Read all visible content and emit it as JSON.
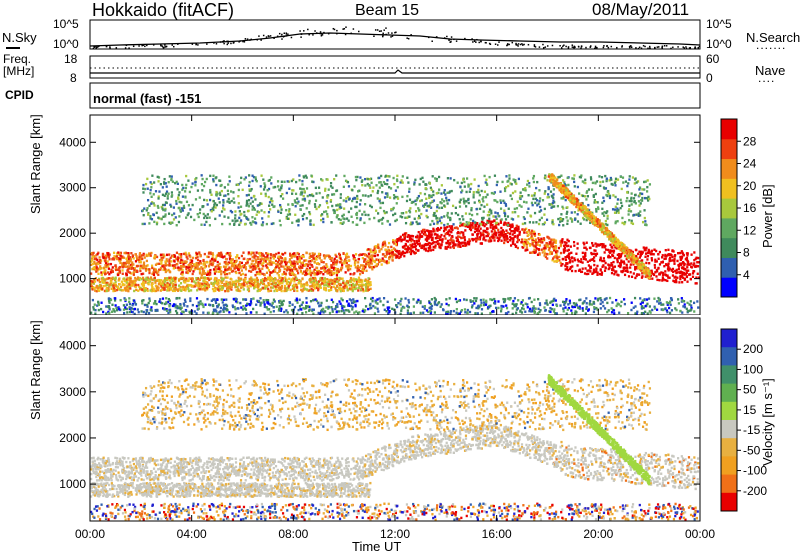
{
  "header": {
    "radar": "Hokkaido (fitACF)",
    "beam": "Beam 15",
    "date": "08/May/2011"
  },
  "top_panel": {
    "left_label_1": "N.Sky",
    "left_label_2": "Freq.",
    "left_label_3": "[MHz]",
    "left_label_4": "CPID",
    "right_label_1": "N.Search",
    "right_label_2": "Nave",
    "ticks_left_a": [
      "10^5",
      "10^0"
    ],
    "ticks_right_a": [
      "10^5",
      "10^0"
    ],
    "ticks_left_b": [
      "18",
      "8"
    ],
    "ticks_right_b": [
      "60",
      "0"
    ],
    "cpid_text": "normal (fast) -151"
  },
  "colors": {
    "power": [
      "#0000ff",
      "#2f5fb0",
      "#3f8a5c",
      "#5fa860",
      "#a8c83c",
      "#f0c020",
      "#f08c1c",
      "#ee4010",
      "#e80000"
    ],
    "velocity": [
      "#2020d0",
      "#3060b0",
      "#40906a",
      "#60b050",
      "#a0d840",
      "#c8c8c0",
      "#e8b040",
      "#f0a020",
      "#f07018",
      "#e80000"
    ]
  },
  "chart_data": [
    {
      "type": "heatmap",
      "name": "Power",
      "ylabel": "Slant Range [km]",
      "xlabel": "",
      "x_ticks": [
        "00:00",
        "04:00",
        "08:00",
        "12:00",
        "16:00",
        "20:00",
        "00:00"
      ],
      "y_ticks": [
        "1000",
        "2000",
        "3000",
        "4000"
      ],
      "ylim": [
        200,
        4600
      ],
      "colorbar_label": "Power [dB]",
      "colorbar_ticks": [
        "4",
        "8",
        "12",
        "16",
        "20",
        "24",
        "28"
      ]
    },
    {
      "type": "heatmap",
      "name": "Velocity",
      "ylabel": "Slant Range [km]",
      "xlabel": "Time UT",
      "x_ticks": [
        "00:00",
        "04:00",
        "08:00",
        "12:00",
        "16:00",
        "20:00",
        "00:00"
      ],
      "y_ticks": [
        "1000",
        "2000",
        "3000",
        "4000"
      ],
      "ylim": [
        200,
        4600
      ],
      "colorbar_label": "Velocity [m s⁻¹]",
      "colorbar_ticks": [
        "200",
        "100",
        "50",
        "15",
        "-15",
        "-50",
        "-100",
        "-200"
      ]
    }
  ]
}
